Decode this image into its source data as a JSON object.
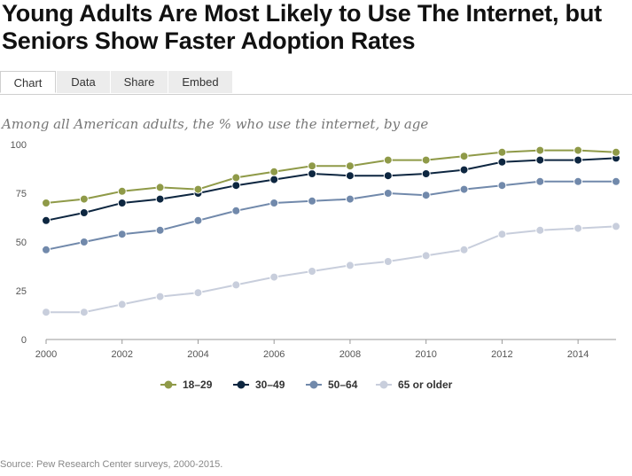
{
  "title": "Young Adults Are Most Likely to Use The Internet, but Seniors Show Faster Adoption Rates",
  "tabs": [
    {
      "label": "Chart",
      "active": true
    },
    {
      "label": "Data",
      "active": false
    },
    {
      "label": "Share",
      "active": false
    },
    {
      "label": "Embed",
      "active": false
    }
  ],
  "subtitle": "Among all American adults, the % who use the internet, by age",
  "source": "Source: Pew Research Center surveys, 2000-2015.",
  "chart_data": {
    "type": "line",
    "x": [
      2000,
      2001,
      2002,
      2003,
      2004,
      2005,
      2006,
      2007,
      2008,
      2009,
      2010,
      2011,
      2012,
      2013,
      2014,
      2015
    ],
    "xticks": [
      "2000",
      "2002",
      "2004",
      "2006",
      "2008",
      "2010",
      "2012",
      "2014"
    ],
    "yticks": [
      "0",
      "25",
      "50",
      "75",
      "100"
    ],
    "ylim": [
      0,
      100
    ],
    "xlim": [
      2000,
      2015
    ],
    "grid": false,
    "legend_position": "bottom",
    "series": [
      {
        "name": "18–29",
        "color": "#8f9a48",
        "values": [
          70,
          72,
          76,
          78,
          77,
          83,
          86,
          89,
          89,
          92,
          92,
          94,
          96,
          97,
          97,
          96
        ]
      },
      {
        "name": "30–49",
        "color": "#0d2640",
        "values": [
          61,
          65,
          70,
          72,
          75,
          79,
          82,
          85,
          84,
          84,
          85,
          87,
          91,
          92,
          92,
          93
        ]
      },
      {
        "name": "50–64",
        "color": "#7189ab",
        "values": [
          46,
          50,
          54,
          56,
          61,
          66,
          70,
          71,
          72,
          75,
          74,
          77,
          79,
          81,
          81,
          81
        ]
      },
      {
        "name": "65 or older",
        "color": "#c8cedc",
        "values": [
          14,
          14,
          18,
          22,
          24,
          28,
          32,
          35,
          38,
          40,
          43,
          46,
          54,
          56,
          57,
          58
        ]
      }
    ]
  }
}
